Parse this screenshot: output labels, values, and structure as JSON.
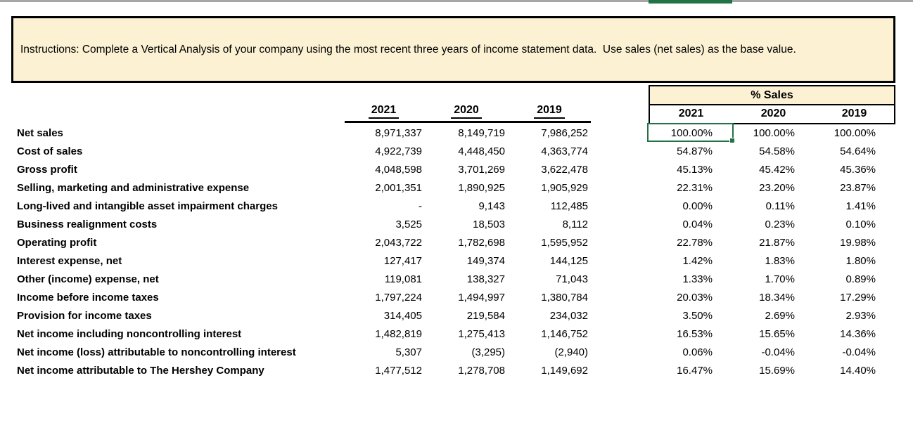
{
  "colors": {
    "accent_green": "#217346",
    "header_fill": "#fcf2d3",
    "top_divider_gray": "#a6a6a6"
  },
  "instructions": {
    "text": "Instructions: Complete a Vertical Analysis of your company using the most recent three years of income statement data.  Use sales (net sales) as the base value."
  },
  "table": {
    "pct_header": "% Sales",
    "value_years": [
      "2021",
      "2020",
      "2019"
    ],
    "pct_years": [
      "2021",
      "2020",
      "2019"
    ],
    "rows": [
      {
        "label": "Net sales",
        "v2021": "8,971,337",
        "v2020": "8,149,719",
        "v2019": "7,986,252",
        "p2021": "100.00%",
        "p2020": "100.00%",
        "p2019": "100.00%"
      },
      {
        "label": "Cost of sales",
        "v2021": "4,922,739",
        "v2020": "4,448,450",
        "v2019": "4,363,774",
        "p2021": "54.87%",
        "p2020": "54.58%",
        "p2019": "54.64%"
      },
      {
        "label": "Gross profit",
        "v2021": "4,048,598",
        "v2020": "3,701,269",
        "v2019": "3,622,478",
        "p2021": "45.13%",
        "p2020": "45.42%",
        "p2019": "45.36%"
      },
      {
        "label": "Selling, marketing and administrative expense",
        "v2021": "2,001,351",
        "v2020": "1,890,925",
        "v2019": "1,905,929",
        "p2021": "22.31%",
        "p2020": "23.20%",
        "p2019": "23.87%"
      },
      {
        "label": "Long-lived and intangible asset impairment charges",
        "v2021": "-",
        "v2020": "9,143",
        "v2019": "112,485",
        "p2021": "0.00%",
        "p2020": "0.11%",
        "p2019": "1.41%"
      },
      {
        "label": "Business realignment costs",
        "v2021": "3,525",
        "v2020": "18,503",
        "v2019": "8,112",
        "p2021": "0.04%",
        "p2020": "0.23%",
        "p2019": "0.10%"
      },
      {
        "label": "Operating profit",
        "v2021": "2,043,722",
        "v2020": "1,782,698",
        "v2019": "1,595,952",
        "p2021": "22.78%",
        "p2020": "21.87%",
        "p2019": "19.98%"
      },
      {
        "label": "Interest expense, net",
        "v2021": "127,417",
        "v2020": "149,374",
        "v2019": "144,125",
        "p2021": "1.42%",
        "p2020": "1.83%",
        "p2019": "1.80%"
      },
      {
        "label": "Other (income) expense, net",
        "v2021": "119,081",
        "v2020": "138,327",
        "v2019": "71,043",
        "p2021": "1.33%",
        "p2020": "1.70%",
        "p2019": "0.89%"
      },
      {
        "label": "Income before income taxes",
        "v2021": "1,797,224",
        "v2020": "1,494,997",
        "v2019": "1,380,784",
        "p2021": "20.03%",
        "p2020": "18.34%",
        "p2019": "17.29%"
      },
      {
        "label": "Provision for income taxes",
        "v2021": "314,405",
        "v2020": "219,584",
        "v2019": "234,032",
        "p2021": "3.50%",
        "p2020": "2.69%",
        "p2019": "2.93%"
      },
      {
        "label": "Net income including noncontrolling interest",
        "v2021": "1,482,819",
        "v2020": "1,275,413",
        "v2019": "1,146,752",
        "p2021": "16.53%",
        "p2020": "15.65%",
        "p2019": "14.36%"
      },
      {
        "label": "Net income (loss) attributable to noncontrolling interest",
        "v2021": "5,307",
        "v2020": "(3,295)",
        "v2019": "(2,940)",
        "p2021": "0.06%",
        "p2020": "-0.04%",
        "p2019": "-0.04%"
      },
      {
        "label": "Net income attributable to The Hershey Company",
        "v2021": "1,477,512",
        "v2020": "1,278,708",
        "v2019": "1,149,692",
        "p2021": "16.47%",
        "p2020": "15.69%",
        "p2019": "14.40%"
      }
    ]
  },
  "selection": {
    "active_cell_value": "100.00%"
  }
}
